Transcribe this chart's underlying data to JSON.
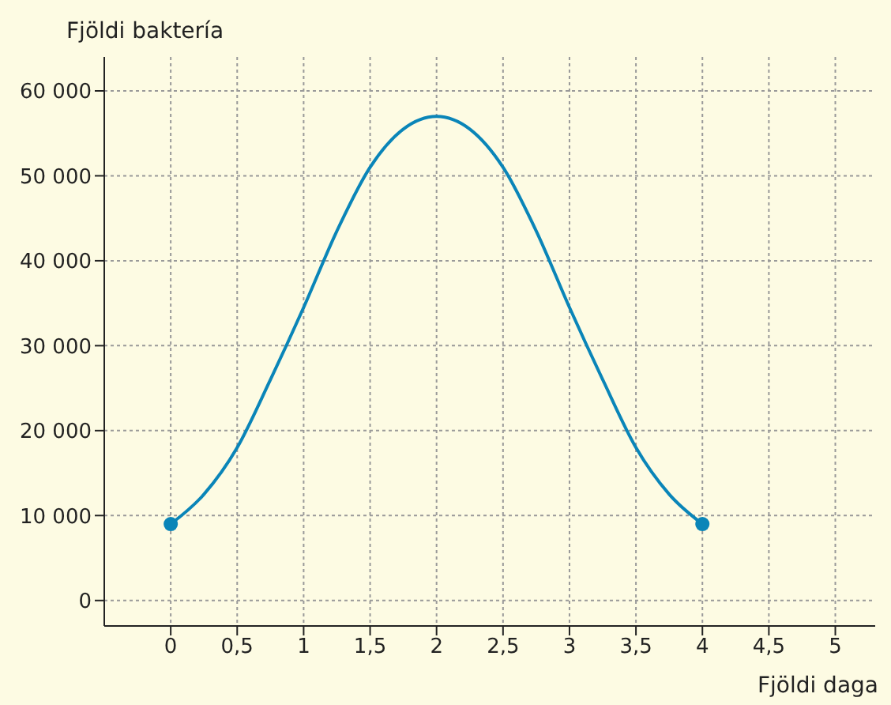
{
  "chart_data": {
    "type": "line",
    "xlabel": "Fjöldi daga",
    "ylabel": "Fjöldi baktería",
    "xlim": [
      -0.5,
      5.3
    ],
    "xticks": [
      {
        "value": 0,
        "label": "0"
      },
      {
        "value": 0.5,
        "label": "0,5"
      },
      {
        "value": 1,
        "label": "1"
      },
      {
        "value": 1.5,
        "label": "1,5"
      },
      {
        "value": 2,
        "label": "2"
      },
      {
        "value": 2.5,
        "label": "2,5"
      },
      {
        "value": 3,
        "label": "3"
      },
      {
        "value": 3.5,
        "label": "3,5"
      },
      {
        "value": 4,
        "label": "4"
      },
      {
        "value": 4.5,
        "label": "4,5"
      },
      {
        "value": 5,
        "label": "5"
      }
    ],
    "ylim": [
      -3000,
      64000
    ],
    "yticks": [
      {
        "value": 0,
        "label": "0"
      },
      {
        "value": 10000,
        "label": "10 000"
      },
      {
        "value": 20000,
        "label": "20 000"
      },
      {
        "value": 30000,
        "label": "30 000"
      },
      {
        "value": 40000,
        "label": "40 000"
      },
      {
        "value": 50000,
        "label": "50 000"
      },
      {
        "value": 60000,
        "label": "60 000"
      }
    ],
    "grid": true,
    "series": [
      {
        "color": "#0a85b8",
        "marker": "none",
        "x": [
          0,
          0.25,
          0.5,
          0.75,
          1,
          1.25,
          1.5,
          1.75,
          2,
          2.25,
          2.5,
          2.75,
          3,
          3.25,
          3.5,
          3.75,
          4
        ],
        "values": [
          9000,
          12500,
          18000,
          26000,
          34500,
          43500,
          51000,
          55500,
          57000,
          55500,
          51000,
          43500,
          34500,
          26000,
          18000,
          12500,
          9000
        ]
      },
      {
        "type": "scatter",
        "color": "#0a85b8",
        "marker": "circle",
        "x": [
          0,
          4
        ],
        "values": [
          9000,
          9000
        ]
      }
    ]
  }
}
